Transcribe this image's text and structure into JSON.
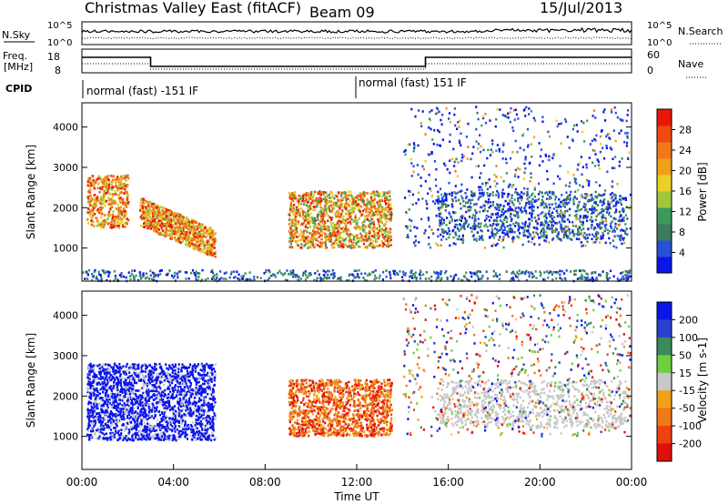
{
  "header": {
    "title": "Christmas Valley East (fitACF)",
    "beam": "Beam 09",
    "date": "15/Jul/2013"
  },
  "chart_data": [
    {
      "type": "line",
      "panel": "noise",
      "left_label": "N.Sky",
      "left_ticks": [
        "10^5",
        "10^0"
      ],
      "right_ticks": [
        "10^5",
        "10^0"
      ],
      "right_label": "N.Search",
      "series": [
        {
          "name": "N.Sky",
          "style": "solid"
        },
        {
          "name": "N.Search",
          "style": "dotted"
        }
      ]
    },
    {
      "type": "line",
      "panel": "frequency",
      "left_label": "Freq. [MHz]",
      "left_ticks": [
        "18",
        "8"
      ],
      "right_ticks": [
        "60",
        "0"
      ],
      "right_label": "Nave",
      "series": [
        {
          "name": "Freq",
          "style": "solid"
        },
        {
          "name": "Nave",
          "style": "dotted"
        }
      ]
    },
    {
      "type": "table",
      "panel": "cpid",
      "label": "CPID",
      "segments": [
        {
          "label": "normal (fast) -151 IF",
          "start_hour": 0,
          "end_hour": 12
        },
        {
          "label": "normal (fast) 151 IF",
          "start_hour": 12,
          "end_hour": 24
        }
      ]
    },
    {
      "type": "heatmap",
      "panel": "power",
      "ylabel": "Slant Range [km]",
      "yticks": [
        1000,
        2000,
        3000,
        4000
      ],
      "ylim": [
        180,
        4600
      ],
      "xlim_hours": [
        0,
        24
      ],
      "colorbar": {
        "label": "Power [dB]",
        "ticks": [
          4,
          8,
          12,
          16,
          20,
          24,
          28
        ],
        "range": [
          0,
          32
        ],
        "colors": [
          "#0a16e8",
          "#2750d8",
          "#3f7a5a",
          "#3a9a5c",
          "#a0c83c",
          "#e8d028",
          "#f0a018",
          "#f07818",
          "#f04a10",
          "#e81808"
        ]
      },
      "regions": [
        {
          "name": "early-band-high",
          "hour_start": 0.2,
          "hour_end": 2.0,
          "range_km": [
            1500,
            2800
          ],
          "level": "high"
        },
        {
          "name": "morning-descending",
          "hour_start": 2.5,
          "hour_end": 5.8,
          "range_km": [
            900,
            2200
          ],
          "level": "high"
        },
        {
          "name": "midday-echoes",
          "hour_start": 9.0,
          "hour_end": 13.5,
          "range_km": [
            1000,
            2400
          ],
          "level": "medium"
        },
        {
          "name": "afternoon-streaks",
          "hour_start": 15.5,
          "hour_end": 23.8,
          "range_km": [
            1200,
            2400
          ],
          "level": "low"
        },
        {
          "name": "near-range-ground",
          "hour_start": 0.0,
          "hour_end": 24.0,
          "range_km": [
            180,
            450
          ],
          "level": "low"
        }
      ]
    },
    {
      "type": "heatmap",
      "panel": "velocity",
      "ylabel": "Slant Range [km]",
      "yticks": [
        1000,
        2000,
        3000,
        4000
      ],
      "ylim": [
        180,
        4600
      ],
      "xlim_hours": [
        0,
        24
      ],
      "xticks": [
        "00:00",
        "04:00",
        "08:00",
        "12:00",
        "16:00",
        "20:00",
        "00:00"
      ],
      "xlabel": "Time UT",
      "colorbar": {
        "label": "Velocity [m s-1]",
        "ticks": [
          200,
          100,
          50,
          15,
          -15,
          -50,
          -100,
          -200
        ],
        "colors": [
          "#0a16e8",
          "#2a40d0",
          "#3a8a5a",
          "#6cd040",
          "#c8c8c8",
          "#f0a018",
          "#f07818",
          "#f04010",
          "#e01008"
        ]
      },
      "regions": [
        {
          "name": "early-blue",
          "hour_start": 0.2,
          "hour_end": 5.8,
          "range_km": [
            900,
            2800
          ],
          "level": "positive"
        },
        {
          "name": "midday-red",
          "hour_start": 9.0,
          "hour_end": 13.5,
          "range_km": [
            1000,
            2400
          ],
          "level": "negative"
        },
        {
          "name": "afternoon-gray",
          "hour_start": 15.5,
          "hour_end": 23.8,
          "range_km": [
            1200,
            2400
          ],
          "level": "zero"
        }
      ]
    }
  ]
}
